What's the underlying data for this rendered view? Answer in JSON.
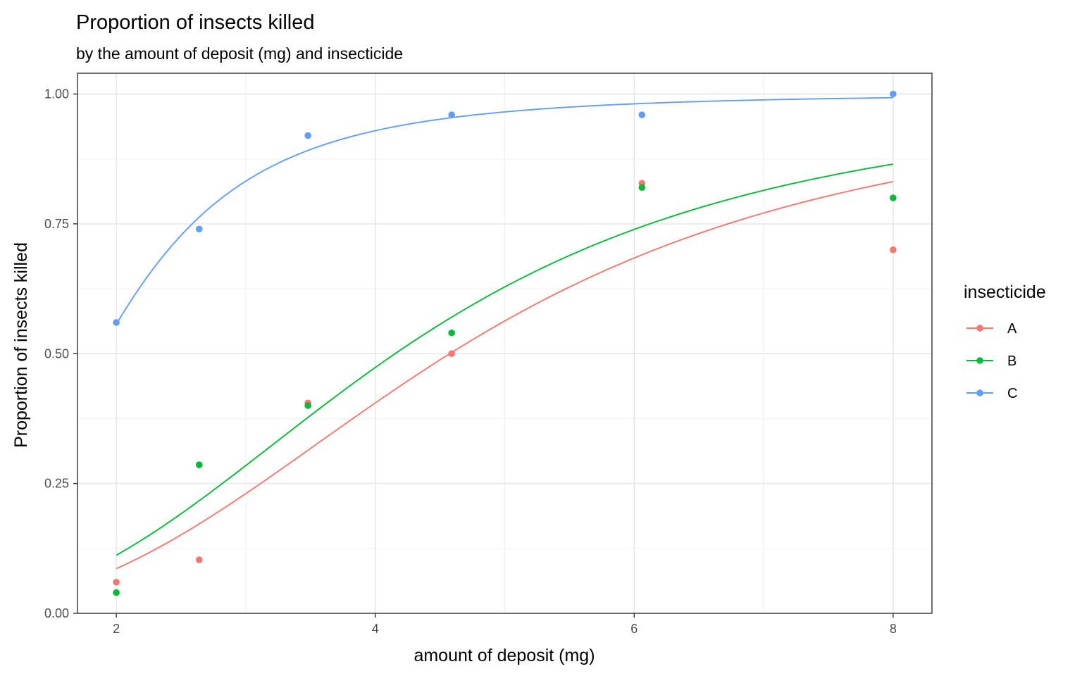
{
  "chart_data": {
    "type": "scatter",
    "title": "Proportion of insects killed",
    "subtitle": "by the amount of deposit (mg) and insecticide",
    "xlabel": "amount of deposit (mg)",
    "ylabel": "Proportion of insects killed",
    "xlim": [
      1.7,
      8.3
    ],
    "ylim": [
      0,
      1.04
    ],
    "x_ticks": [
      2,
      4,
      6,
      8
    ],
    "x_tick_labels": [
      "2",
      "4",
      "6",
      "8"
    ],
    "y_ticks": [
      0,
      0.25,
      0.5,
      0.75,
      1
    ],
    "y_tick_labels": [
      "0.00",
      "0.25",
      "0.50",
      "0.75",
      "1.00"
    ],
    "grid": true,
    "legend": {
      "title": "insecticide",
      "position": "right"
    },
    "fitted_lines": true,
    "series": [
      {
        "name": "A",
        "color": "#F8766D",
        "x": [
          2.0,
          2.64,
          3.48,
          4.59,
          6.06,
          8.0
        ],
        "y": [
          0.06,
          0.103,
          0.405,
          0.5,
          0.828,
          0.7
        ]
      },
      {
        "name": "B",
        "color": "#00BA38",
        "x": [
          2.0,
          2.64,
          3.48,
          4.59,
          6.06,
          8.0
        ],
        "y": [
          0.04,
          0.286,
          0.4,
          0.54,
          0.82,
          0.8
        ]
      },
      {
        "name": "C",
        "color": "#619CFF",
        "x": [
          2.0,
          2.64,
          3.48,
          4.59,
          6.06,
          8.0
        ],
        "y": [
          0.56,
          0.74,
          0.92,
          0.96,
          0.96,
          1.0
        ]
      }
    ]
  }
}
